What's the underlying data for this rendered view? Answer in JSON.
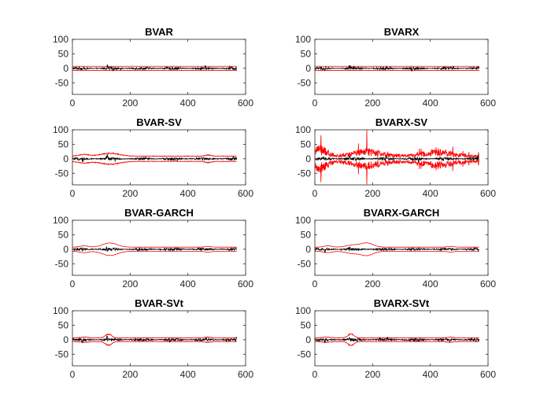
{
  "chart_data": [
    {
      "type": "line",
      "title": "BVAR",
      "xlim": [
        0,
        600
      ],
      "ylim": [
        -90,
        100
      ],
      "xticks": [
        0,
        200,
        400,
        600
      ],
      "yticks": [
        -50,
        0,
        50,
        100
      ],
      "n_points": 570,
      "band_style": "flat",
      "band_amp": 7,
      "noise_amp": 5,
      "spike_scale": 1.0,
      "grid": false,
      "series": [
        {
          "role": "point",
          "color": "#000000"
        },
        {
          "role": "upper",
          "color": "#ff0000"
        },
        {
          "role": "lower",
          "color": "#ff0000"
        }
      ]
    },
    {
      "type": "line",
      "title": "BVARX",
      "xlim": [
        0,
        600
      ],
      "ylim": [
        -90,
        100
      ],
      "xticks": [
        0,
        200,
        400,
        600
      ],
      "yticks": [
        -50,
        0,
        50,
        100
      ],
      "n_points": 570,
      "band_style": "flat",
      "band_amp": 7,
      "noise_amp": 5,
      "spike_scale": 1.0,
      "grid": false,
      "series": [
        {
          "role": "point",
          "color": "#000000"
        },
        {
          "role": "upper",
          "color": "#ff0000"
        },
        {
          "role": "lower",
          "color": "#ff0000"
        }
      ]
    },
    {
      "type": "line",
      "title": "BVAR-SV",
      "xlim": [
        0,
        600
      ],
      "ylim": [
        -90,
        100
      ],
      "xticks": [
        0,
        200,
        400,
        600
      ],
      "yticks": [
        -50,
        0,
        50,
        100
      ],
      "n_points": 570,
      "band_style": "sv",
      "band_amp": 10,
      "noise_amp": 5,
      "spike_scale": 1.0,
      "grid": false,
      "series": [
        {
          "role": "point",
          "color": "#000000"
        },
        {
          "role": "upper",
          "color": "#ff0000"
        },
        {
          "role": "lower",
          "color": "#ff0000"
        }
      ]
    },
    {
      "type": "line",
      "title": "BVARX-SV",
      "xlim": [
        0,
        600
      ],
      "ylim": [
        -90,
        100
      ],
      "xticks": [
        0,
        200,
        400,
        600
      ],
      "yticks": [
        -50,
        0,
        50,
        100
      ],
      "n_points": 570,
      "band_style": "noisy",
      "band_amp": 22,
      "noise_amp": 6,
      "spike_scale": 1.0,
      "grid": false,
      "series": [
        {
          "role": "point",
          "color": "#000000"
        },
        {
          "role": "upper",
          "color": "#ff0000"
        },
        {
          "role": "lower",
          "color": "#ff0000"
        }
      ]
    },
    {
      "type": "line",
      "title": "BVAR-GARCH",
      "xlim": [
        0,
        600
      ],
      "ylim": [
        -90,
        100
      ],
      "xticks": [
        0,
        200,
        400,
        600
      ],
      "yticks": [
        -50,
        0,
        50,
        100
      ],
      "n_points": 570,
      "band_style": "garch",
      "band_amp": 9,
      "noise_amp": 5,
      "spike_scale": 1.0,
      "grid": false,
      "series": [
        {
          "role": "point",
          "color": "#000000"
        },
        {
          "role": "upper",
          "color": "#ff0000"
        },
        {
          "role": "lower",
          "color": "#ff0000"
        }
      ]
    },
    {
      "type": "line",
      "title": "BVARX-GARCH",
      "xlim": [
        0,
        600
      ],
      "ylim": [
        -90,
        100
      ],
      "xticks": [
        0,
        200,
        400,
        600
      ],
      "yticks": [
        -50,
        0,
        50,
        100
      ],
      "n_points": 570,
      "band_style": "garchx",
      "band_amp": 9,
      "noise_amp": 5,
      "spike_scale": 1.0,
      "grid": false,
      "series": [
        {
          "role": "point",
          "color": "#000000"
        },
        {
          "role": "upper",
          "color": "#ff0000"
        },
        {
          "role": "lower",
          "color": "#ff0000"
        }
      ]
    },
    {
      "type": "line",
      "title": "BVAR-SVt",
      "xlim": [
        0,
        600
      ],
      "ylim": [
        -90,
        100
      ],
      "xticks": [
        0,
        200,
        400,
        600
      ],
      "yticks": [
        -50,
        0,
        50,
        100
      ],
      "n_points": 570,
      "band_style": "svt",
      "band_amp": 8,
      "noise_amp": 5,
      "spike_scale": 1.0,
      "grid": false,
      "series": [
        {
          "role": "point",
          "color": "#000000"
        },
        {
          "role": "upper",
          "color": "#ff0000"
        },
        {
          "role": "lower",
          "color": "#ff0000"
        }
      ]
    },
    {
      "type": "line",
      "title": "BVARX-SVt",
      "xlim": [
        0,
        600
      ],
      "ylim": [
        -90,
        100
      ],
      "xticks": [
        0,
        200,
        400,
        600
      ],
      "yticks": [
        -50,
        0,
        50,
        100
      ],
      "n_points": 570,
      "band_style": "svt",
      "band_amp": 8,
      "noise_amp": 5,
      "spike_scale": 1.0,
      "grid": false,
      "series": [
        {
          "role": "point",
          "color": "#000000"
        },
        {
          "role": "upper",
          "color": "#ff0000"
        },
        {
          "role": "lower",
          "color": "#ff0000"
        }
      ]
    }
  ],
  "colors": {
    "point": "#000000",
    "band": "#ff0000",
    "axes": "#262626",
    "background": "#ffffff"
  }
}
